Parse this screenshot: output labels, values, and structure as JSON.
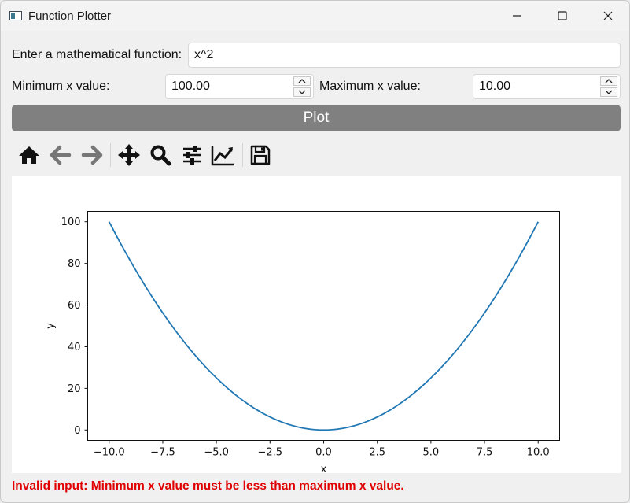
{
  "window": {
    "title": "Function Plotter",
    "icons": {
      "app": "app-window-icon",
      "minimize": "minimize-icon",
      "maximize": "maximize-icon",
      "close": "close-icon"
    }
  },
  "form": {
    "function_label": "Enter a mathematical function:",
    "function_value": "x^2",
    "min_label": "Minimum x value:",
    "min_value": "100.00",
    "max_label": "Maximum x value:",
    "max_value": "10.00",
    "plot_button": "Plot"
  },
  "toolbar": {
    "icons": [
      "home-icon",
      "back-arrow-icon",
      "forward-arrow-icon",
      "pan-icon",
      "zoom-icon",
      "configure-subplots-icon",
      "edit-axis-icon",
      "save-icon"
    ]
  },
  "chart_data": {
    "type": "line",
    "function": "x^2",
    "x": [
      -10,
      -9,
      -8,
      -7,
      -6,
      -5,
      -4,
      -3,
      -2,
      -1,
      0,
      1,
      2,
      3,
      4,
      5,
      6,
      7,
      8,
      9,
      10
    ],
    "series": [
      {
        "values": [
          100,
          81,
          64,
          49,
          36,
          25,
          16,
          9,
          4,
          1,
          0,
          1,
          4,
          9,
          16,
          25,
          36,
          49,
          64,
          81,
          100
        ],
        "color": "#1f77b4"
      }
    ],
    "xlabel": "x",
    "ylabel": "y",
    "xticks": [
      "−10.0",
      "−7.5",
      "−5.0",
      "−2.5",
      "0.0",
      "2.5",
      "5.0",
      "7.5",
      "10.0"
    ],
    "yticks": [
      "0",
      "20",
      "40",
      "60",
      "80",
      "100"
    ],
    "xlim": [
      -11,
      11
    ],
    "ylim": [
      -5,
      105
    ],
    "grid": false
  },
  "status": {
    "error_message": "Invalid input: Minimum x value must be less than maximum x value.",
    "error_color": "#e00000"
  }
}
